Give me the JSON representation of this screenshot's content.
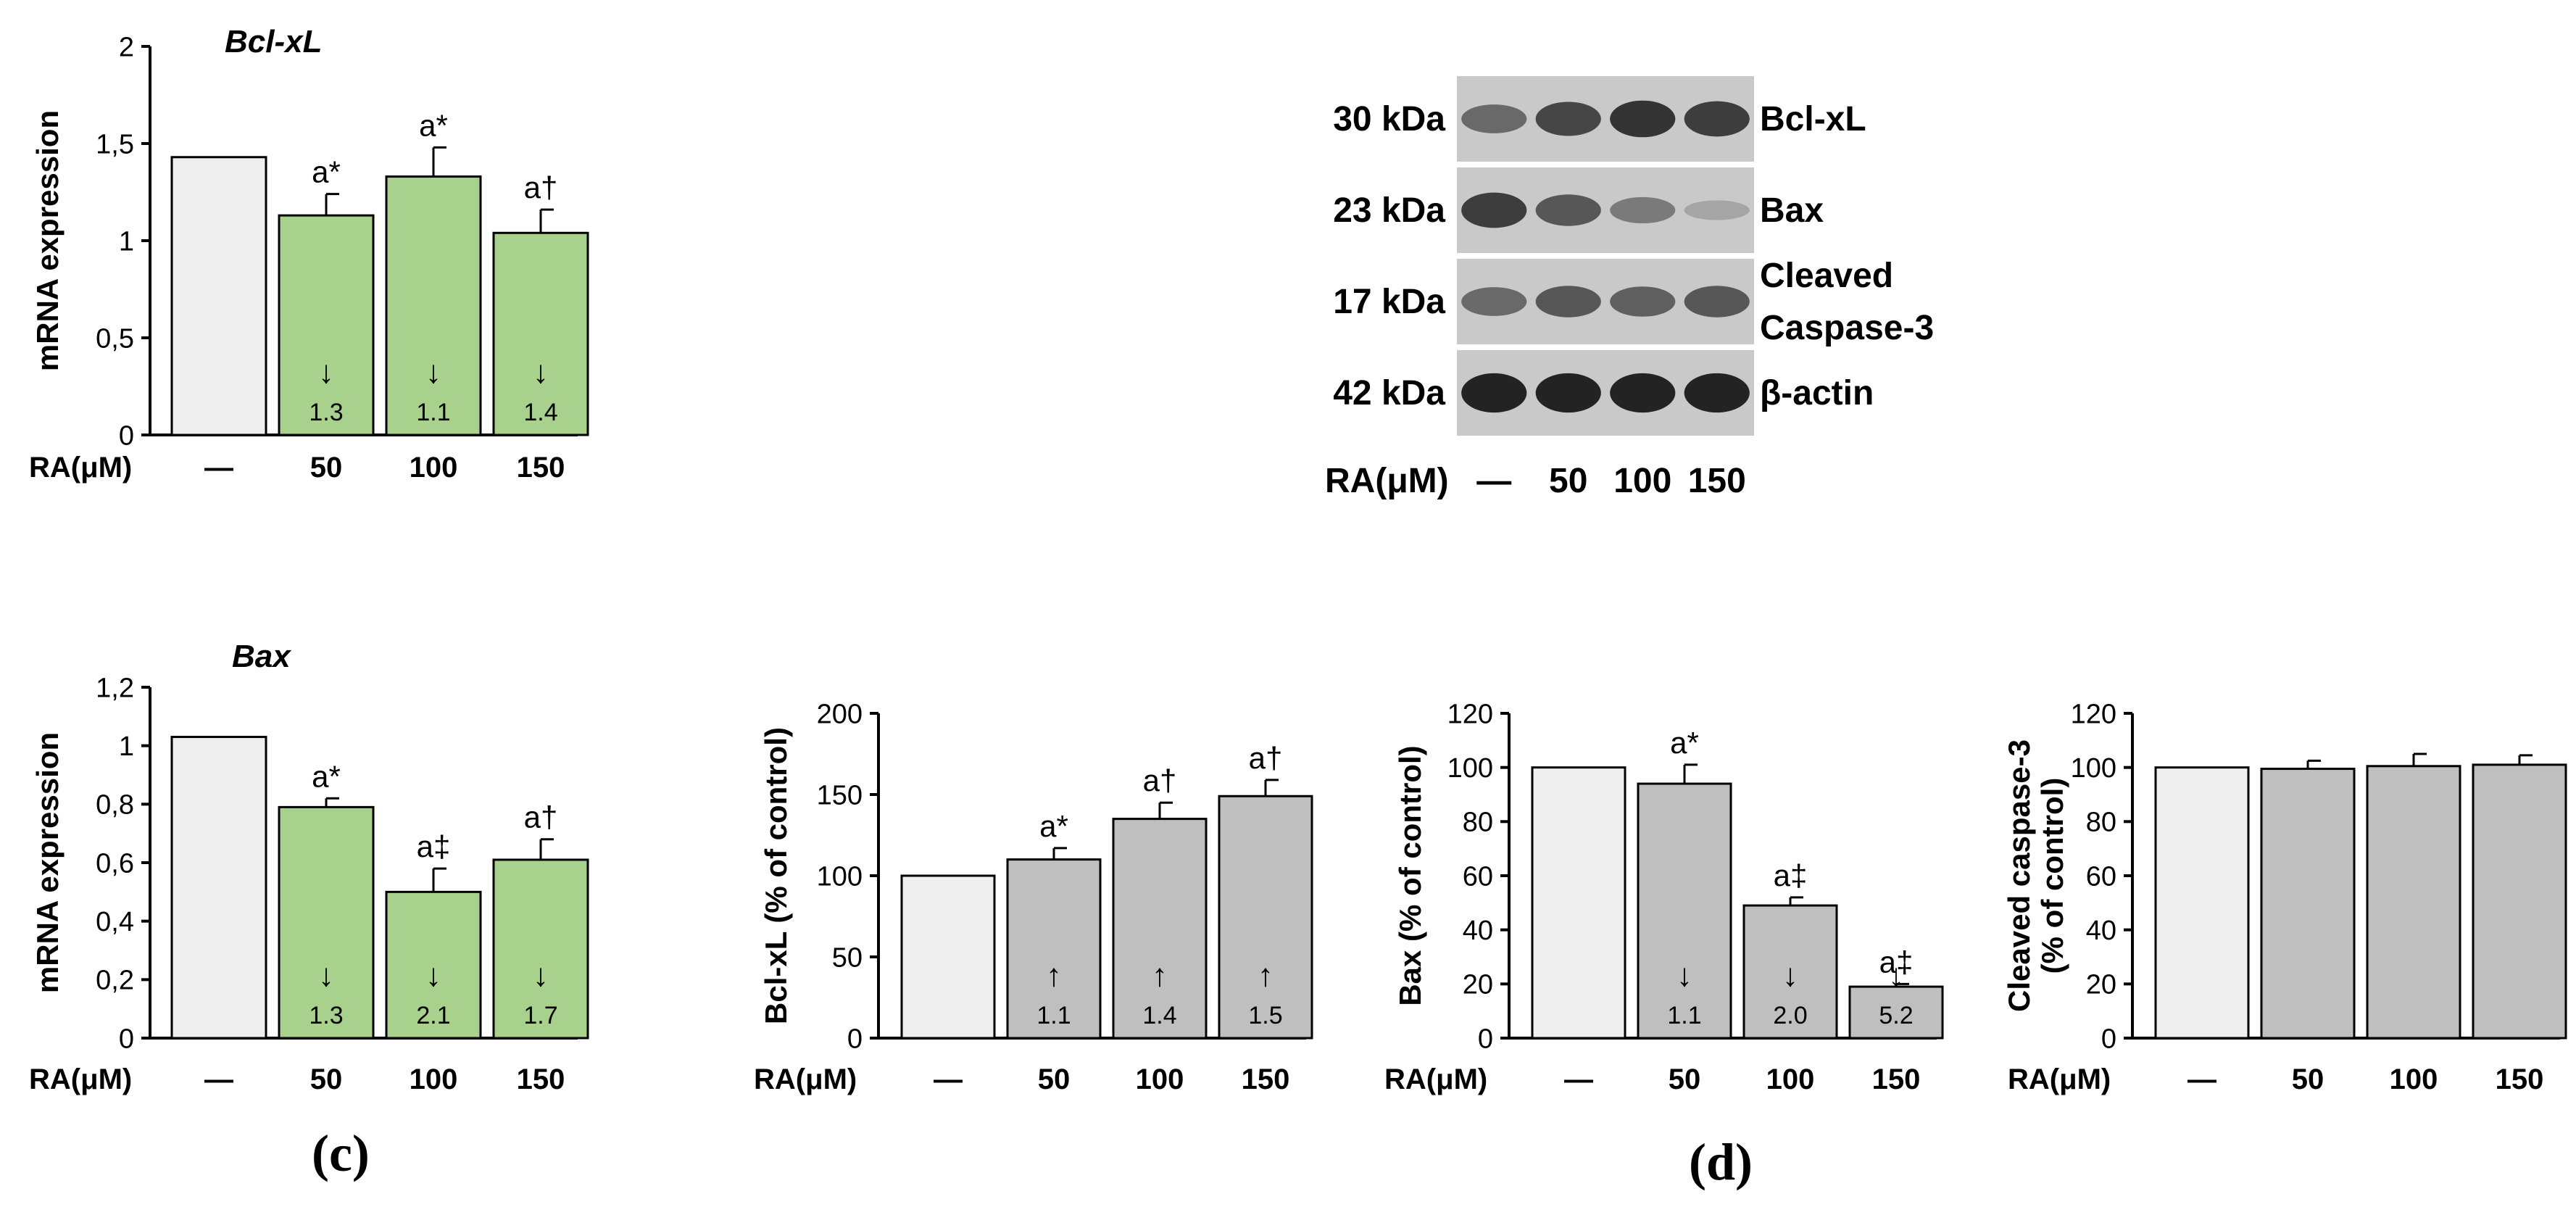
{
  "labels": {
    "panel_c": "(c)",
    "panel_d": "(d)"
  },
  "colors": {
    "control_fill": "#efefef",
    "rna_fill": "#a9d18e",
    "protein_fill": "#bfbfbf",
    "stroke": "#000000",
    "blot_background": "#c9c9c9",
    "band": "#1a1a1a"
  },
  "blot": {
    "rows": [
      {
        "kda": "30 kDa",
        "label": [
          "Bcl-xL"
        ]
      },
      {
        "kda": "23 kDa",
        "label": [
          "Bax"
        ]
      },
      {
        "kda": "17 kDa",
        "label": [
          "Cleaved",
          "Caspase-3"
        ]
      },
      {
        "kda": "42 kDa",
        "label": [
          "β-actin"
        ]
      }
    ],
    "xlabel": "RA(μM)",
    "lanes": [
      "—",
      "50",
      "100",
      "150"
    ],
    "band_strength": [
      [
        0.55,
        0.75,
        0.85,
        0.8
      ],
      [
        0.8,
        0.65,
        0.45,
        0.2
      ],
      [
        0.55,
        0.65,
        0.6,
        0.65
      ],
      [
        0.95,
        0.95,
        0.95,
        0.95
      ]
    ]
  },
  "chart_data": [
    {
      "id": "bclxl-mrna",
      "type": "bar",
      "title": "Bcl-xL",
      "ylabel": "mRNA expression",
      "xlabel": "RA(μM)",
      "categories": [
        "—",
        "50",
        "100",
        "150"
      ],
      "values": [
        1.43,
        1.13,
        1.33,
        1.04
      ],
      "errors": [
        0,
        0.11,
        0.15,
        0.12
      ],
      "ylim": [
        0,
        2
      ],
      "yticks": [
        "0",
        "0,5",
        "1",
        "1,5",
        "2"
      ],
      "ytick_values": [
        0,
        0.5,
        1,
        1.5,
        2
      ],
      "annotations": [
        "",
        "a*",
        "a*",
        "a†"
      ],
      "arrows": [
        "",
        "↓",
        "↓",
        "↓"
      ],
      "folds": [
        "",
        "1.3",
        "1.1",
        "1.4"
      ],
      "fill_key": "rna_fill"
    },
    {
      "id": "bax-mrna",
      "type": "bar",
      "title": "Bax",
      "ylabel": "mRNA expression",
      "xlabel": "RA(μM)",
      "categories": [
        "—",
        "50",
        "100",
        "150"
      ],
      "values": [
        1.03,
        0.79,
        0.5,
        0.61
      ],
      "errors": [
        0,
        0.03,
        0.08,
        0.07
      ],
      "ylim": [
        0,
        1.2
      ],
      "yticks": [
        "0",
        "0,2",
        "0,4",
        "0,6",
        "0,8",
        "1",
        "1,2"
      ],
      "ytick_values": [
        0,
        0.2,
        0.4,
        0.6,
        0.8,
        1,
        1.2
      ],
      "annotations": [
        "",
        "a*",
        "a‡",
        "a†"
      ],
      "arrows": [
        "",
        "↓",
        "↓",
        "↓"
      ],
      "folds": [
        "",
        "1.3",
        "2.1",
        "1.7"
      ],
      "fill_key": "rna_fill"
    },
    {
      "id": "bclxl-protein",
      "type": "bar",
      "title": "",
      "ylabel": "Bcl-xL (% of control)",
      "xlabel": "RA(μM)",
      "categories": [
        "—",
        "50",
        "100",
        "150"
      ],
      "values": [
        100,
        110,
        135,
        149
      ],
      "errors": [
        0,
        7,
        10,
        10
      ],
      "ylim": [
        0,
        200
      ],
      "yticks": [
        "0",
        "50",
        "100",
        "150",
        "200"
      ],
      "ytick_values": [
        0,
        50,
        100,
        150,
        200
      ],
      "annotations": [
        "",
        "a*",
        "a†",
        "a†"
      ],
      "arrows": [
        "",
        "↑",
        "↑",
        "↑"
      ],
      "folds": [
        "",
        "1.1",
        "1.4",
        "1.5"
      ],
      "fill_key": "protein_fill"
    },
    {
      "id": "bax-protein",
      "type": "bar",
      "title": "",
      "ylabel": "Bax (% of control)",
      "xlabel": "RA(μM)",
      "categories": [
        "—",
        "50",
        "100",
        "150"
      ],
      "values": [
        100,
        94,
        49,
        19
      ],
      "errors": [
        0,
        7,
        3,
        1
      ],
      "ylim": [
        0,
        120
      ],
      "yticks": [
        "0",
        "20",
        "40",
        "60",
        "80",
        "100",
        "120"
      ],
      "ytick_values": [
        0,
        20,
        40,
        60,
        80,
        100,
        120
      ],
      "annotations": [
        "",
        "a*",
        "a‡",
        "a‡"
      ],
      "arrows": [
        "",
        "↓",
        "↓",
        "↓"
      ],
      "folds": [
        "",
        "1.1",
        "2.0",
        "5.2"
      ],
      "fill_key": "protein_fill"
    },
    {
      "id": "caspase-protein",
      "type": "bar",
      "title": "",
      "ylabel": [
        "Cleaved caspase-3",
        "(% of control)"
      ],
      "xlabel": "RA(μM)",
      "categories": [
        "—",
        "50",
        "100",
        "150"
      ],
      "values": [
        100,
        99.5,
        100.5,
        101
      ],
      "errors": [
        0,
        3,
        4.5,
        3.5
      ],
      "ylim": [
        0,
        120
      ],
      "yticks": [
        "0",
        "20",
        "40",
        "60",
        "80",
        "100",
        "120"
      ],
      "ytick_values": [
        0,
        20,
        40,
        60,
        80,
        100,
        120
      ],
      "annotations": [
        "",
        "",
        "",
        ""
      ],
      "arrows": [
        "",
        "",
        "",
        ""
      ],
      "folds": [
        "",
        "",
        "",
        ""
      ],
      "fill_key": "protein_fill"
    }
  ]
}
